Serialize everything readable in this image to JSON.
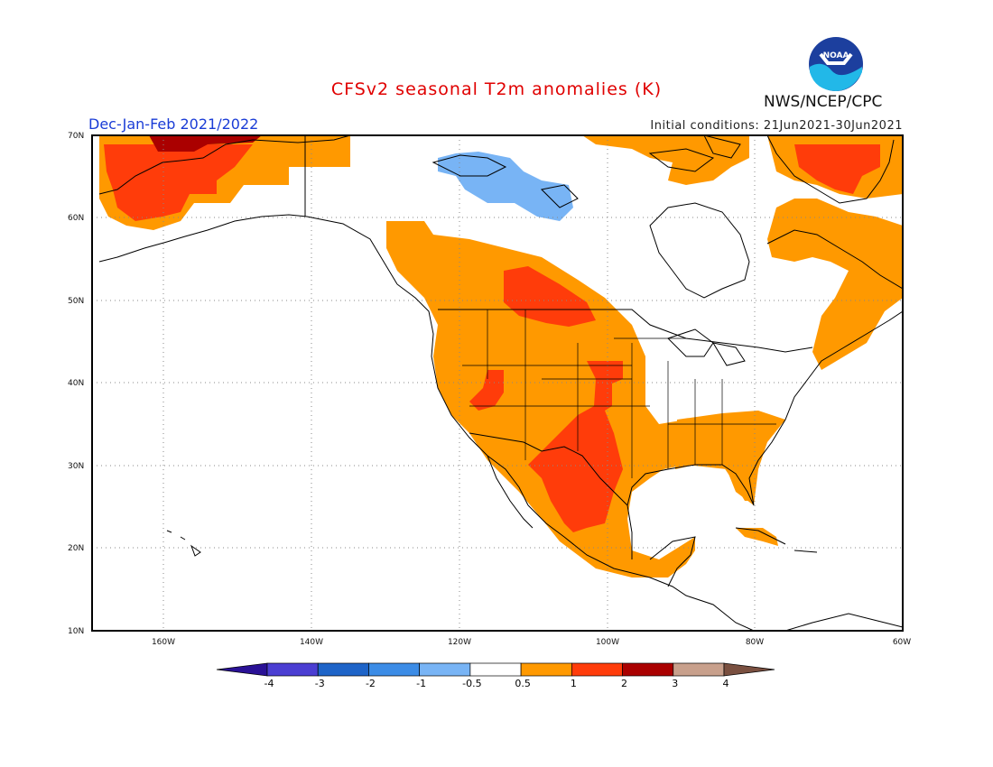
{
  "title": "CFSv2 seasonal T2m anomalies (K)",
  "season": "Dec-Jan-Feb 2021/2022",
  "initial_conditions": "Initial conditions: 21Jun2021-30Jun2021",
  "agency": "NWS/NCEP/CPC",
  "logo_text": "NOAA",
  "map": {
    "lat_labels": [
      "70N",
      "60N",
      "50N",
      "40N",
      "30N",
      "20N",
      "10N"
    ],
    "lon_labels": [
      "160W",
      "140W",
      "120W",
      "100W",
      "80W",
      "60W"
    ],
    "lat_range": [
      10,
      70
    ],
    "lon_range": [
      -172,
      -60
    ]
  },
  "colorbar": {
    "labels": [
      "-4",
      "-3",
      "-2",
      "-1",
      "-0.5",
      "0.5",
      "1",
      "2",
      "3",
      "4"
    ],
    "colors": [
      "#2a1196",
      "#4b3ed2",
      "#1e64c8",
      "#3c8ce6",
      "#78b4f5",
      "#ffffff",
      "#ff9900",
      "#ff3c0a",
      "#aa0000",
      "#c8a08c",
      "#7a5040"
    ]
  },
  "anomaly_regions": [
    {
      "name": "alaska-west",
      "level": "1"
    },
    {
      "name": "alaska-core",
      "level": "2"
    },
    {
      "name": "alaska-north",
      "level": "3"
    },
    {
      "name": "canada-north-cold",
      "level": "-1"
    },
    {
      "name": "western-us",
      "level": "1"
    },
    {
      "name": "northern-rockies",
      "level": "2"
    },
    {
      "name": "great-basin",
      "level": "2"
    },
    {
      "name": "southern-plains",
      "level": "2"
    },
    {
      "name": "mexico",
      "level": "1"
    },
    {
      "name": "southeast-us",
      "level": "1"
    },
    {
      "name": "eastern-canada",
      "level": "1"
    },
    {
      "name": "greenland",
      "level": "2"
    }
  ]
}
